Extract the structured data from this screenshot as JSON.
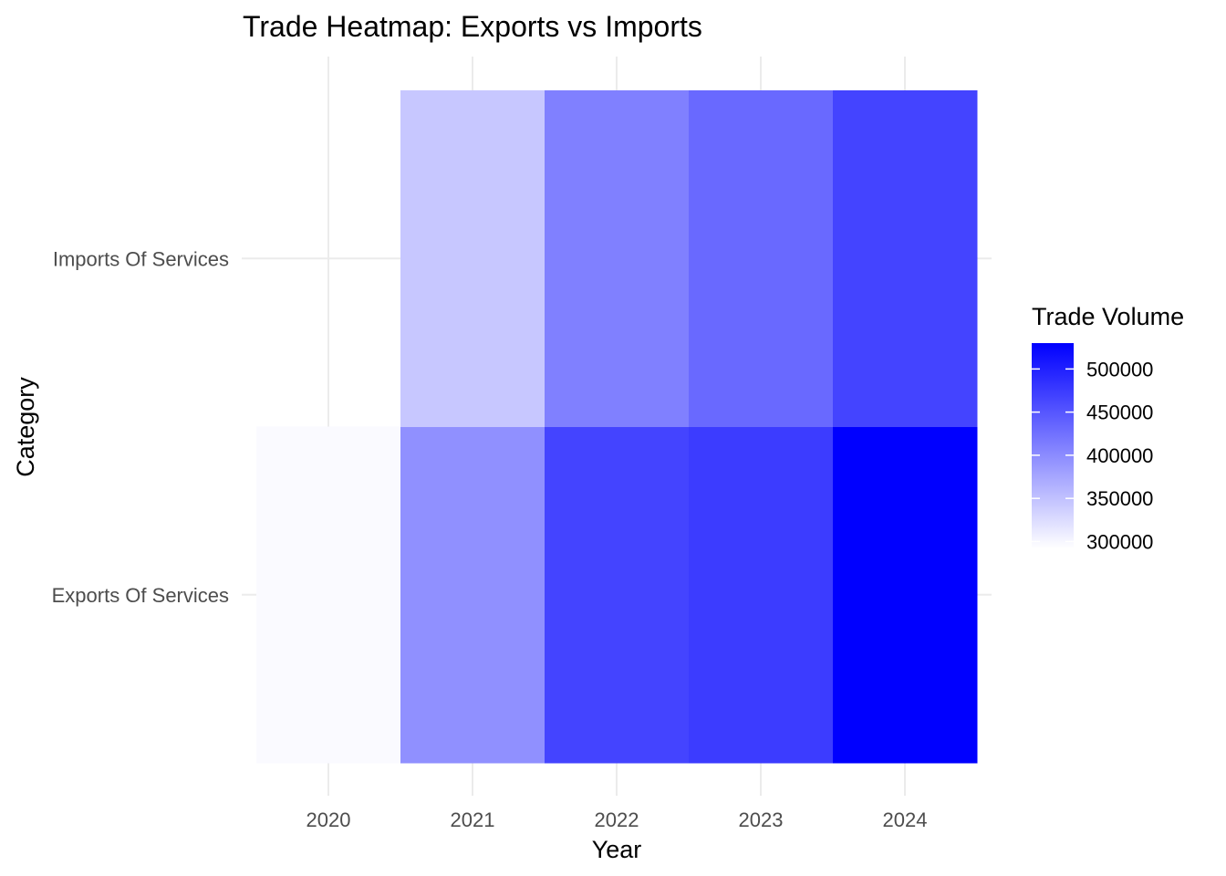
{
  "chart_data": {
    "type": "heatmap",
    "title": "Trade Heatmap: Exports vs Imports",
    "xlabel": "Year",
    "ylabel": "Category",
    "x": [
      "2020",
      "2021",
      "2022",
      "2023",
      "2024"
    ],
    "y": [
      "Exports Of Services",
      "Imports Of Services"
    ],
    "values": [
      [
        297000,
        396000,
        467000,
        474000,
        530000
      ],
      [
        null,
        344000,
        411000,
        432000,
        467000
      ]
    ],
    "grid": true,
    "legend": {
      "title": "Trade Volume",
      "position": "right",
      "ticks": [
        300000,
        350000,
        400000,
        450000,
        500000
      ],
      "tick_labels": [
        "300000",
        "350000",
        "400000",
        "450000",
        "500000"
      ],
      "range": [
        292000,
        530000
      ],
      "low_color": "#ffffff",
      "high_color": "#0000ff"
    }
  }
}
